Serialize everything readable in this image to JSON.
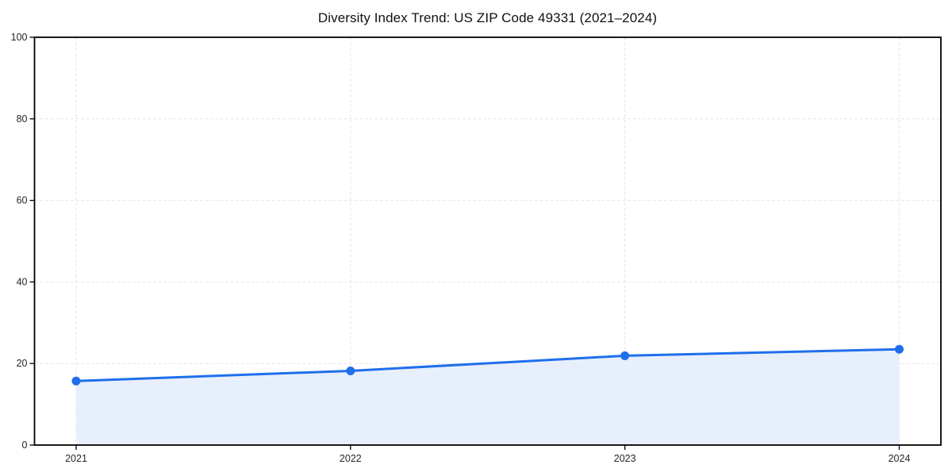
{
  "chart_data": {
    "type": "line",
    "title": "Diversity Index Trend: US ZIP Code 49331 (2021–2024)",
    "x": [
      "2021",
      "2022",
      "2023",
      "2024"
    ],
    "values": [
      15.7,
      18.2,
      21.9,
      23.5
    ],
    "ylim": [
      0,
      100
    ],
    "yticks": [
      0,
      20,
      40,
      60,
      80,
      100
    ],
    "grid": "dashed",
    "legend": "none",
    "area_fill": true,
    "marker": "circle",
    "colors": {
      "line": "#1f6feb",
      "marker": "#1f6feb",
      "fill": "#e8effc",
      "grid": "#e5e5e5",
      "spine": "#000000",
      "tick": "#000000",
      "tick_label": "#262626",
      "title": "#111111"
    }
  }
}
